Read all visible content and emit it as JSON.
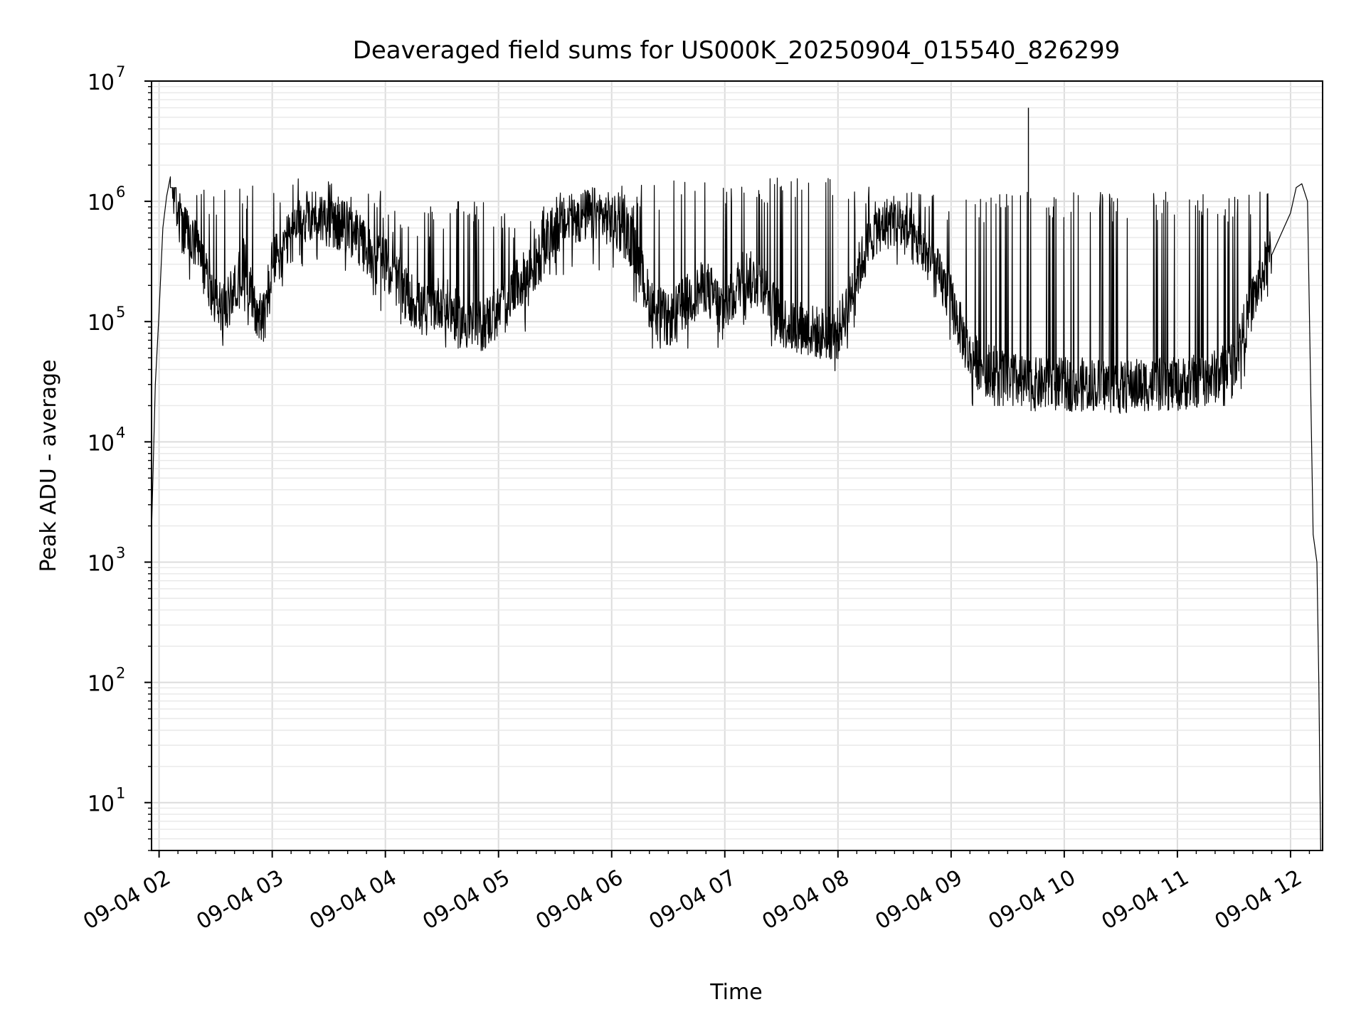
{
  "chart_data": {
    "type": "line",
    "title": "Deaveraged field sums for US000K_20250904_015540_826299",
    "xlabel": "Time",
    "ylabel": "Peak ADU - average",
    "yscale": "log",
    "xlim": [
      "2025-09-04 01:56",
      "2025-09-04 12:17"
    ],
    "ylim": [
      4,
      10000000
    ],
    "grid": true,
    "line_color": "#000000",
    "x_ticks": [
      "09-04 02",
      "09-04 03",
      "09-04 04",
      "09-04 05",
      "09-04 06",
      "09-04 07",
      "09-04 08",
      "09-04 09",
      "09-04 10",
      "09-04 11",
      "09-04 12"
    ],
    "y_ticks": [
      {
        "value": 10,
        "base": "10",
        "exp": "1"
      },
      {
        "value": 100,
        "base": "10",
        "exp": "2"
      },
      {
        "value": 1000,
        "base": "10",
        "exp": "3"
      },
      {
        "value": 10000,
        "base": "10",
        "exp": "4"
      },
      {
        "value": 100000,
        "base": "10",
        "exp": "5"
      },
      {
        "value": 1000000,
        "base": "10",
        "exp": "6"
      },
      {
        "value": 10000000,
        "base": "10",
        "exp": "7"
      }
    ],
    "series": [
      {
        "x": [
          "2025-09-04 01:56",
          "2025-09-04 01:58",
          "2025-09-04 02:00",
          "2025-09-04 02:02",
          "2025-09-04 02:04",
          "2025-09-04 02:06",
          "2025-09-04 02:08",
          "2025-09-04 02:12",
          "2025-09-04 02:16",
          "2025-09-04 02:20",
          "2025-09-04 02:25",
          "2025-09-04 02:30",
          "2025-09-04 02:35",
          "2025-09-04 02:40",
          "2025-09-04 02:45",
          "2025-09-04 02:50",
          "2025-09-04 02:55",
          "2025-09-04 03:00",
          "2025-09-04 03:10",
          "2025-09-04 03:20",
          "2025-09-04 03:30",
          "2025-09-04 03:40",
          "2025-09-04 03:50",
          "2025-09-04 04:00",
          "2025-09-04 04:10",
          "2025-09-04 04:20",
          "2025-09-04 04:30",
          "2025-09-04 04:40",
          "2025-09-04 04:50",
          "2025-09-04 05:00",
          "2025-09-04 05:10",
          "2025-09-04 05:20",
          "2025-09-04 05:30",
          "2025-09-04 05:40",
          "2025-09-04 05:50",
          "2025-09-04 06:00",
          "2025-09-04 06:10",
          "2025-09-04 06:20",
          "2025-09-04 06:30",
          "2025-09-04 06:40",
          "2025-09-04 06:50",
          "2025-09-04 07:00",
          "2025-09-04 07:10",
          "2025-09-04 07:20",
          "2025-09-04 07:30",
          "2025-09-04 07:40",
          "2025-09-04 07:50",
          "2025-09-04 08:00",
          "2025-09-04 08:10",
          "2025-09-04 08:20",
          "2025-09-04 08:30",
          "2025-09-04 08:40",
          "2025-09-04 08:50",
          "2025-09-04 09:00",
          "2025-09-04 09:10",
          "2025-09-04 09:20",
          "2025-09-04 09:30",
          "2025-09-04 09:40",
          "2025-09-04 09:50",
          "2025-09-04 10:00",
          "2025-09-04 10:10",
          "2025-09-04 10:20",
          "2025-09-04 10:30",
          "2025-09-04 10:40",
          "2025-09-04 10:50",
          "2025-09-04 11:00",
          "2025-09-04 11:10",
          "2025-09-04 11:20",
          "2025-09-04 11:30",
          "2025-09-04 11:40",
          "2025-09-04 11:50",
          "2025-09-04 12:00",
          "2025-09-04 12:03",
          "2025-09-04 12:06",
          "2025-09-04 12:09",
          "2025-09-04 12:12",
          "2025-09-04 12:14",
          "2025-09-04 12:15",
          "2025-09-04 12:16"
        ],
        "y": [
          1800,
          30000,
          120000,
          600000,
          1100000,
          1600000,
          1500000,
          600000,
          500000,
          400000,
          250000,
          150000,
          120000,
          200000,
          300000,
          150000,
          100000,
          300000,
          500000,
          800000,
          700000,
          600000,
          400000,
          300000,
          180000,
          120000,
          150000,
          100000,
          90000,
          120000,
          200000,
          300000,
          600000,
          700000,
          800000,
          700000,
          500000,
          150000,
          100000,
          150000,
          200000,
          120000,
          250000,
          200000,
          100000,
          90000,
          80000,
          80000,
          250000,
          600000,
          700000,
          500000,
          300000,
          150000,
          50000,
          40000,
          35000,
          30000,
          30000,
          30000,
          30000,
          30000,
          28000,
          30000,
          30000,
          30000,
          32000,
          35000,
          45000,
          150000,
          400000,
          800000,
          1300000,
          1400000,
          1000000,
          1700,
          1000,
          100,
          4
        ]
      }
    ],
    "spikes": [
      {
        "x": "2025-09-04 09:41",
        "y": 6000000
      }
    ],
    "high_variability_min": [
      60000,
      60000,
      60000,
      60000,
      60000,
      60000,
      60000,
      60000,
      60000,
      60000,
      60000,
      60000,
      20000,
      20000,
      20000,
      20000,
      20000,
      20000,
      20000,
      20000
    ],
    "high_variability_max": [
      1300000,
      1500000,
      1600000,
      1300000,
      900000,
      1000000,
      900000,
      1300000,
      1400000,
      1500000,
      1600000,
      1700000,
      1400000,
      1200000,
      1200000,
      1200000,
      1200000,
      1200000,
      1200000,
      1200000
    ]
  }
}
